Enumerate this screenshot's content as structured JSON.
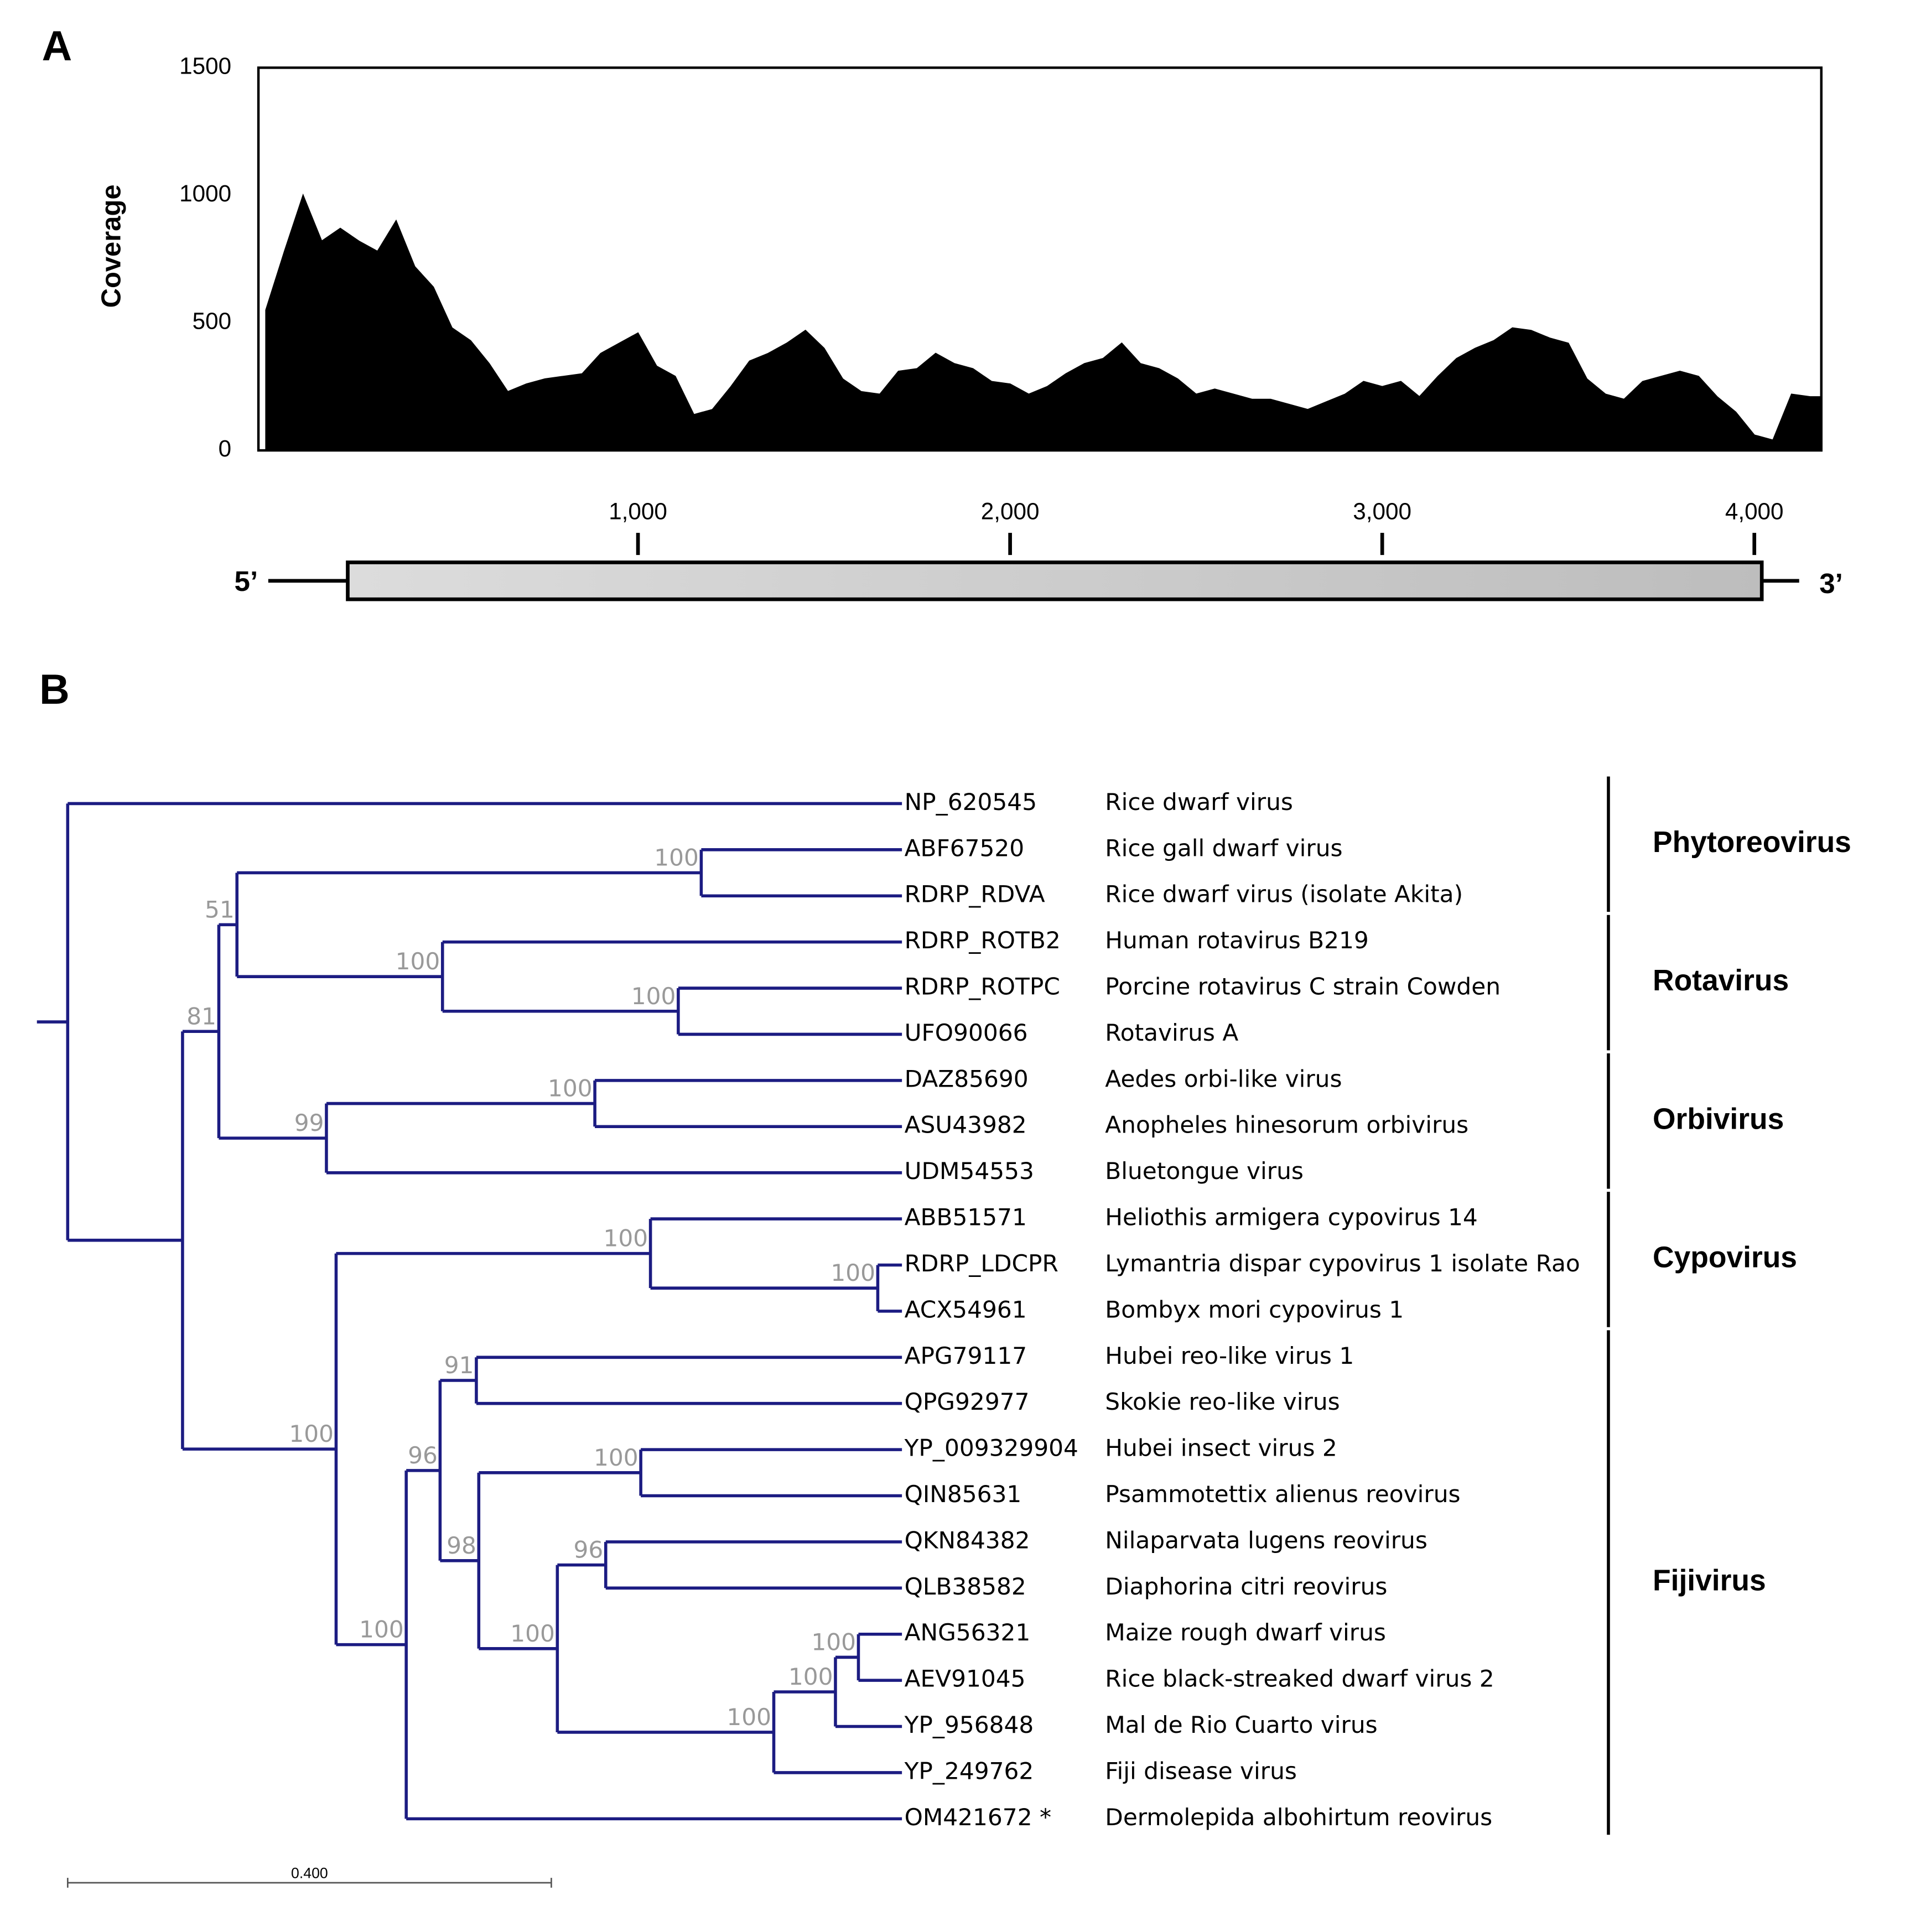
{
  "chart_data": {
    "type": "area",
    "panel": "A",
    "ylabel": "Coverage",
    "x": [
      0,
      50,
      100,
      150,
      200,
      250,
      300,
      350,
      400,
      450,
      500,
      550,
      600,
      650,
      700,
      750,
      800,
      850,
      900,
      950,
      1000,
      1050,
      1100,
      1150,
      1200,
      1250,
      1300,
      1350,
      1400,
      1450,
      1500,
      1550,
      1600,
      1650,
      1700,
      1750,
      1800,
      1850,
      1900,
      1950,
      2000,
      2050,
      2100,
      2150,
      2200,
      2250,
      2300,
      2350,
      2400,
      2450,
      2500,
      2550,
      2600,
      2650,
      2700,
      2750,
      2800,
      2850,
      2900,
      2950,
      3000,
      3050,
      3100,
      3150,
      3200,
      3250,
      3300,
      3350,
      3400,
      3450,
      3500,
      3550,
      3600,
      3650,
      3700,
      3750,
      3800,
      3850,
      3900,
      3950,
      4000,
      4050,
      4100,
      4150,
      4180
    ],
    "values": [
      550,
      780,
      1000,
      820,
      870,
      820,
      780,
      900,
      720,
      640,
      480,
      430,
      340,
      230,
      260,
      280,
      290,
      300,
      380,
      420,
      460,
      330,
      290,
      140,
      160,
      250,
      350,
      380,
      420,
      470,
      400,
      280,
      230,
      220,
      310,
      320,
      380,
      340,
      320,
      270,
      260,
      220,
      250,
      300,
      340,
      360,
      420,
      340,
      320,
      280,
      220,
      240,
      220,
      200,
      200,
      180,
      160,
      190,
      220,
      270,
      250,
      270,
      210,
      290,
      360,
      400,
      430,
      480,
      470,
      440,
      420,
      280,
      220,
      200,
      270,
      290,
      310,
      290,
      210,
      150,
      60,
      40,
      220,
      210,
      210
    ],
    "color": "#000000",
    "xlim": [
      -20,
      4180
    ],
    "ylim": [
      0,
      1500
    ],
    "yticks": [
      0,
      500,
      1000,
      1500
    ],
    "xticks": [
      {
        "value": 1000,
        "label": "1,000"
      },
      {
        "value": 2000,
        "label": "2,000"
      },
      {
        "value": 3000,
        "label": "3,000"
      },
      {
        "value": 4000,
        "label": "4,000"
      }
    ],
    "genome_map": {
      "five_prime": "5’",
      "three_prime": "3’",
      "orf": [
        220,
        4020
      ]
    }
  },
  "tree": {
    "panel": "B",
    "color": "#1c1c82",
    "scale_bar": {
      "value": 0.4,
      "label": "0.400"
    },
    "root": {
      "depth": 0,
      "children": [
        {
          "accession": "NP_620545",
          "name": "Rice dwarf virus",
          "depth": 0.69
        },
        {
          "depth": 0.095,
          "children": [
            {
              "depth": 0.125,
              "support": 81,
              "children": [
                {
                  "depth": 0.14,
                  "support": 51,
                  "children": [
                    {
                      "depth": 0.524,
                      "support": 100,
                      "children": [
                        {
                          "accession": "ABF67520",
                          "name": "Rice gall dwarf virus",
                          "depth": 0.69
                        },
                        {
                          "accession": "RDRP_RDVA",
                          "name": "Rice dwarf virus (isolate Akita)",
                          "depth": 0.69
                        }
                      ]
                    },
                    {
                      "depth": 0.31,
                      "support": 100,
                      "children": [
                        {
                          "accession": "RDRP_ROTB2",
                          "name": "Human rotavirus B219",
                          "depth": 0.69
                        },
                        {
                          "depth": 0.505,
                          "support": 100,
                          "children": [
                            {
                              "accession": "RDRP_ROTPC",
                              "name": "Porcine rotavirus C strain Cowden",
                              "depth": 0.69
                            },
                            {
                              "accession": "UFO90066",
                              "name": "Rotavirus A",
                              "depth": 0.69
                            }
                          ]
                        }
                      ]
                    }
                  ]
                },
                {
                  "depth": 0.214,
                  "support": 99,
                  "children": [
                    {
                      "depth": 0.436,
                      "support": 100,
                      "children": [
                        {
                          "accession": "DAZ85690",
                          "name": "Aedes orbi-like virus",
                          "depth": 0.69
                        },
                        {
                          "accession": "ASU43982",
                          "name": "Anopheles hinesorum orbivirus",
                          "depth": 0.69
                        }
                      ]
                    },
                    {
                      "accession": "UDM54553",
                      "name": "Bluetongue virus",
                      "depth": 0.69
                    }
                  ]
                }
              ]
            },
            {
              "depth": 0.222,
              "support": 100,
              "children": [
                {
                  "depth": 0.482,
                  "support": 100,
                  "children": [
                    {
                      "accession": "ABB51571",
                      "name": "Heliothis armigera cypovirus 14",
                      "depth": 0.69
                    },
                    {
                      "depth": 0.67,
                      "support": 100,
                      "children": [
                        {
                          "accession": "RDRP_LDCPR",
                          "name": "Lymantria dispar cypovirus 1 isolate Rao",
                          "depth": 0.69
                        },
                        {
                          "accession": "ACX54961",
                          "name": "Bombyx mori cypovirus 1",
                          "depth": 0.69
                        }
                      ]
                    }
                  ]
                },
                {
                  "depth": 0.28,
                  "support": 100,
                  "children": [
                    {
                      "depth": 0.308,
                      "support": 96,
                      "children": [
                        {
                          "depth": 0.338,
                          "support": 91,
                          "children": [
                            {
                              "accession": "APG79117",
                              "name": "Hubei reo-like virus 1",
                              "depth": 0.69
                            },
                            {
                              "accession": "QPG92977",
                              "name": "Skokie reo-like virus",
                              "depth": 0.69
                            }
                          ]
                        },
                        {
                          "depth": 0.34,
                          "support": 98,
                          "children": [
                            {
                              "depth": 0.474,
                              "support": 100,
                              "children": [
                                {
                                  "accession": "YP_009329904",
                                  "name": "Hubei insect virus 2",
                                  "depth": 0.69
                                },
                                {
                                  "accession": "QIN85631",
                                  "name": "Psammotettix alienus reovirus",
                                  "depth": 0.69
                                }
                              ]
                            },
                            {
                              "depth": 0.405,
                              "support": 100,
                              "children": [
                                {
                                  "depth": 0.445,
                                  "support": 96,
                                  "children": [
                                    {
                                      "accession": "QKN84382",
                                      "name": "Nilaparvata lugens reovirus",
                                      "depth": 0.69
                                    },
                                    {
                                      "accession": "QLB38582",
                                      "name": "Diaphorina citri reovirus",
                                      "depth": 0.69
                                    }
                                  ]
                                },
                                {
                                  "depth": 0.584,
                                  "support": 100,
                                  "children": [
                                    {
                                      "depth": 0.635,
                                      "support": 100,
                                      "children": [
                                        {
                                          "depth": 0.654,
                                          "support": 100,
                                          "children": [
                                            {
                                              "accession": "ANG56321",
                                              "name": "Maize rough dwarf virus",
                                              "depth": 0.69
                                            },
                                            {
                                              "accession": "AEV91045",
                                              "name": "Rice black-streaked dwarf virus 2",
                                              "depth": 0.69
                                            }
                                          ]
                                        },
                                        {
                                          "accession": "YP_956848",
                                          "name": "Mal de Rio Cuarto virus",
                                          "depth": 0.69
                                        }
                                      ]
                                    },
                                    {
                                      "accession": "YP_249762",
                                      "name": "Fiji disease virus",
                                      "depth": 0.69
                                    }
                                  ]
                                }
                              ]
                            }
                          ]
                        }
                      ]
                    },
                    {
                      "accession": "OM421672 *",
                      "name": "Dermolepida albohirtum reovirus",
                      "depth": 0.69
                    }
                  ]
                }
              ]
            }
          ]
        }
      ]
    },
    "clades": [
      {
        "name": "Phytoreovirus",
        "span": [
          0,
          2
        ]
      },
      {
        "name": "Rotavirus",
        "span": [
          3,
          5
        ]
      },
      {
        "name": "Orbivirus",
        "span": [
          6,
          8
        ]
      },
      {
        "name": "Cypovirus",
        "span": [
          9,
          11
        ]
      },
      {
        "name": "Fijivirus",
        "span": [
          12,
          22
        ]
      }
    ]
  }
}
